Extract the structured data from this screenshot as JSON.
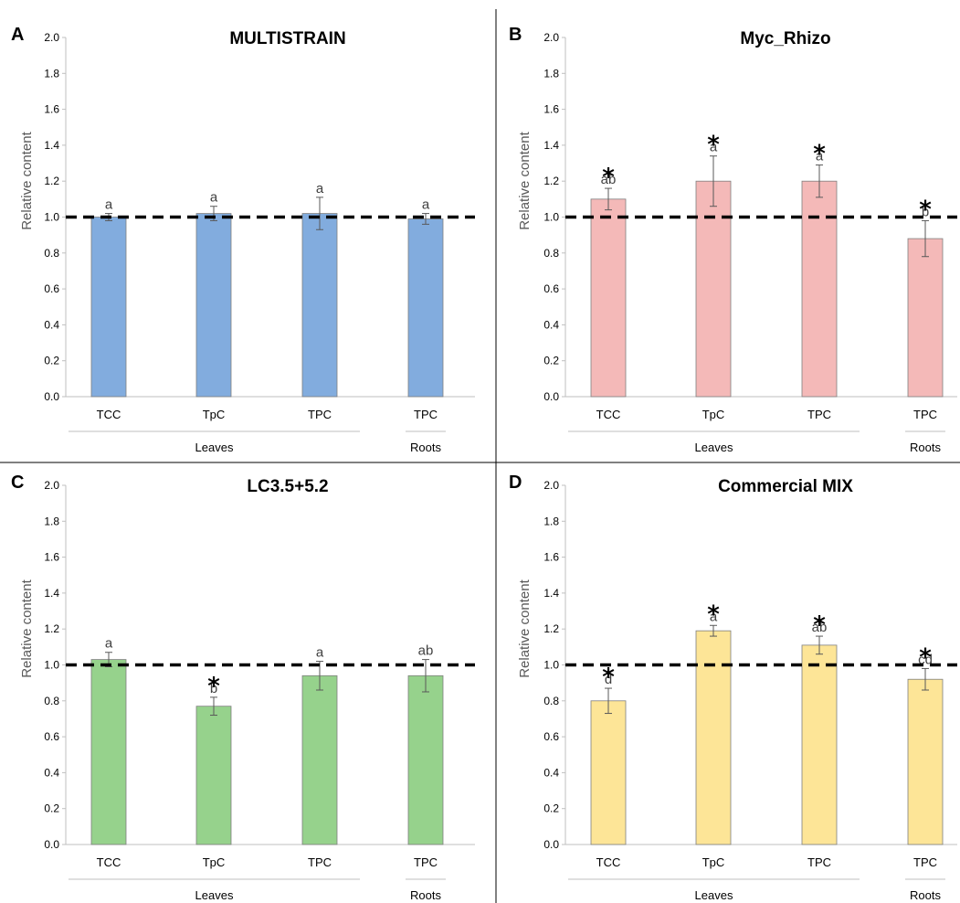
{
  "chart_data": [
    {
      "type": "bar",
      "panel": "A",
      "title": "MULTISTRAIN",
      "ylabel": "Relative content",
      "ylim": [
        0,
        2
      ],
      "yticks": [
        "0.0",
        "0.2",
        "0.4",
        "0.6",
        "0.8",
        "1.0",
        "1.2",
        "1.4",
        "1.6",
        "1.8",
        "2.0"
      ],
      "categories": [
        "TCC",
        "TpC",
        "TPC",
        "TPC"
      ],
      "groups": [
        {
          "label": "Leaves",
          "from": 0,
          "to": 2
        },
        {
          "label": "Roots",
          "from": 3,
          "to": 3
        }
      ],
      "values": [
        1.0,
        1.02,
        1.02,
        0.99
      ],
      "errors": [
        0.02,
        0.04,
        0.09,
        0.03
      ],
      "letters": [
        "a",
        "a",
        "a",
        "a"
      ],
      "stars": [
        false,
        false,
        false,
        false
      ],
      "reference_line": 1.0,
      "bar_color": "#82acde",
      "grid": false
    },
    {
      "type": "bar",
      "panel": "B",
      "title": "Myc_Rhizo",
      "ylabel": "Relative content",
      "ylim": [
        0,
        2
      ],
      "yticks": [
        "0.0",
        "0.2",
        "0.4",
        "0.6",
        "0.8",
        "1.0",
        "1.2",
        "1.4",
        "1.6",
        "1.8",
        "2.0"
      ],
      "categories": [
        "TCC",
        "TpC",
        "TPC",
        "TPC"
      ],
      "groups": [
        {
          "label": "Leaves",
          "from": 0,
          "to": 2
        },
        {
          "label": "Roots",
          "from": 3,
          "to": 3
        }
      ],
      "values": [
        1.1,
        1.2,
        1.2,
        0.88
      ],
      "errors": [
        0.06,
        0.14,
        0.09,
        0.1
      ],
      "letters": [
        "ab",
        "a",
        "a",
        "b"
      ],
      "stars": [
        true,
        true,
        true,
        true
      ],
      "reference_line": 1.0,
      "bar_color": "#f4b9b8",
      "grid": false
    },
    {
      "type": "bar",
      "panel": "C",
      "title": "LC3.5+5.2",
      "ylabel": "Relative content",
      "ylim": [
        0,
        2
      ],
      "yticks": [
        "0.0",
        "0.2",
        "0.4",
        "0.6",
        "0.8",
        "1.0",
        "1.2",
        "1.4",
        "1.6",
        "1.8",
        "2.0"
      ],
      "categories": [
        "TCC",
        "TpC",
        "TPC",
        "TPC"
      ],
      "groups": [
        {
          "label": "Leaves",
          "from": 0,
          "to": 2
        },
        {
          "label": "Roots",
          "from": 3,
          "to": 3
        }
      ],
      "values": [
        1.03,
        0.77,
        0.94,
        0.94
      ],
      "errors": [
        0.04,
        0.05,
        0.08,
        0.09
      ],
      "letters": [
        "a",
        "b",
        "a",
        "ab"
      ],
      "stars": [
        false,
        true,
        false,
        false
      ],
      "reference_line": 1.0,
      "bar_color": "#96d28c",
      "grid": false
    },
    {
      "type": "bar",
      "panel": "D",
      "title": "Commercial MIX",
      "ylabel": "Relative content",
      "ylim": [
        0,
        2
      ],
      "yticks": [
        "0.0",
        "0.2",
        "0.4",
        "0.6",
        "0.8",
        "1.0",
        "1.2",
        "1.4",
        "1.6",
        "1.8",
        "2.0"
      ],
      "categories": [
        "TCC",
        "TpC",
        "TPC",
        "TPC"
      ],
      "groups": [
        {
          "label": "Leaves",
          "from": 0,
          "to": 2
        },
        {
          "label": "Roots",
          "from": 3,
          "to": 3
        }
      ],
      "values": [
        0.8,
        1.19,
        1.11,
        0.92
      ],
      "errors": [
        0.07,
        0.03,
        0.05,
        0.06
      ],
      "letters": [
        "d",
        "a",
        "ab",
        "cd"
      ],
      "stars": [
        true,
        true,
        true,
        true
      ],
      "reference_line": 1.0,
      "bar_color": "#fde597",
      "grid": false
    }
  ]
}
